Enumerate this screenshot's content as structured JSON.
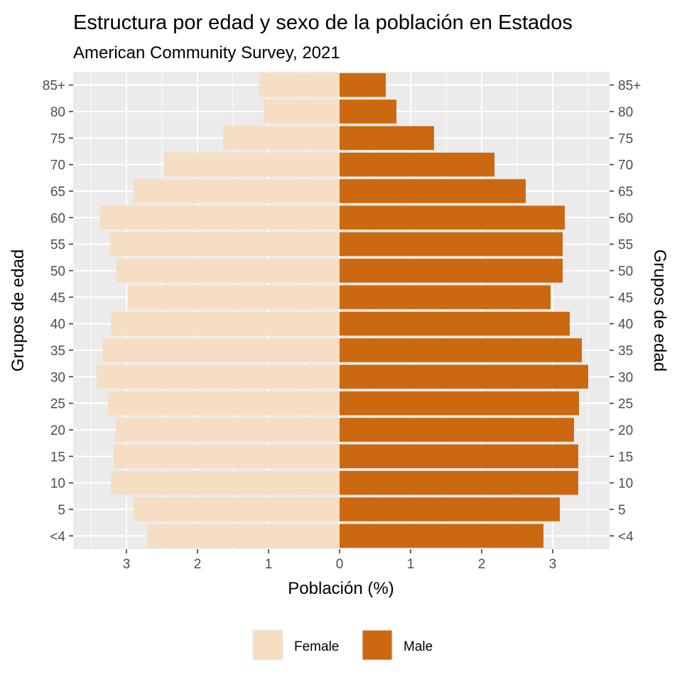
{
  "chart_data": {
    "type": "bar",
    "orientation": "horizontal",
    "title": "Estructura por edad y sexo de la población en Estados",
    "subtitle": "American Community Survey, 2021",
    "xlabel": "Población (%)",
    "ylabel": "Grupos de edad",
    "ylabel_right": "Grupos de edad",
    "categories": [
      "<4",
      "5",
      "10",
      "15",
      "20",
      "25",
      "30",
      "35",
      "40",
      "45",
      "50",
      "55",
      "60",
      "65",
      "70",
      "75",
      "80",
      "85+"
    ],
    "x_ticks": [
      -3,
      -2,
      -1,
      0,
      1,
      2,
      3
    ],
    "x_tick_labels": [
      "3",
      "2",
      "1",
      "0",
      "1",
      "2",
      "3"
    ],
    "xlim": [
      -3.75,
      3.8
    ],
    "grid": true,
    "legend_position": "bottom",
    "series": [
      {
        "name": "Female",
        "color": "#F5DEC4",
        "values": [
          -2.71,
          -2.9,
          -3.22,
          -3.18,
          -3.15,
          -3.26,
          -3.42,
          -3.34,
          -3.22,
          -2.98,
          -3.14,
          -3.23,
          -3.37,
          -2.9,
          -2.47,
          -1.64,
          -1.07,
          -1.13
        ]
      },
      {
        "name": "Male",
        "color": "#CC6810",
        "values": [
          2.87,
          3.1,
          3.36,
          3.36,
          3.3,
          3.37,
          3.5,
          3.41,
          3.24,
          2.97,
          3.14,
          3.14,
          3.17,
          2.62,
          2.18,
          1.33,
          0.8,
          0.65
        ]
      }
    ]
  }
}
